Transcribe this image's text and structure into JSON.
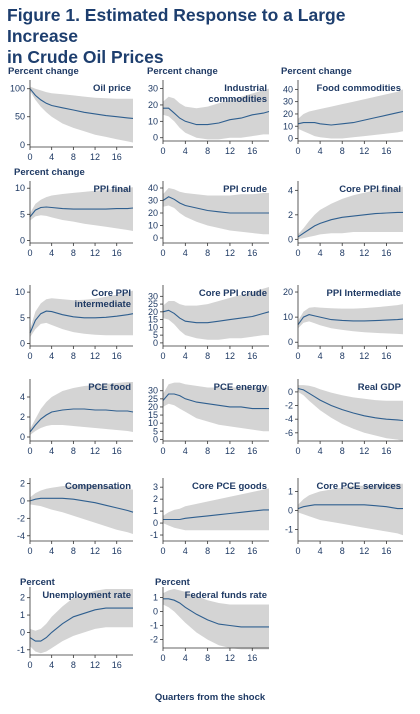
{
  "figure": {
    "title_line1": "Figure 1. Estimated Response to a Large Increase",
    "title_line2": "in Crude Oil Prices",
    "x_axis_label": "Quarters from the shock"
  },
  "colors": {
    "band": "#d4d4d4",
    "line": "#2f5f8f",
    "text": "#1f3a64",
    "title": "#1d3e6e"
  },
  "chart_data": [
    {
      "type": "line",
      "title": "Oil price",
      "ylabel": "Percent change",
      "x": [
        0,
        1,
        2,
        3,
        4,
        6,
        8,
        10,
        12,
        14,
        16,
        18,
        19
      ],
      "y": [
        100,
        88,
        80,
        74,
        70,
        66,
        62,
        58,
        55,
        52,
        50,
        48,
        47
      ],
      "lower": [
        96,
        80,
        68,
        58,
        50,
        38,
        30,
        24,
        18,
        14,
        10,
        6,
        4
      ],
      "upper": [
        104,
        100,
        97,
        94,
        92,
        90,
        88,
        86,
        84,
        83,
        82,
        82,
        82
      ],
      "ylim": [
        -4,
        112
      ],
      "yticks": [
        0,
        50,
        100
      ],
      "xlim": [
        0,
        19
      ],
      "xticks": [
        0,
        4,
        8,
        12,
        16
      ]
    },
    {
      "type": "line",
      "title": "Industrial commodities",
      "ylabel": "Percent change",
      "x": [
        0,
        1,
        2,
        3,
        4,
        6,
        8,
        10,
        12,
        14,
        16,
        18,
        19
      ],
      "y": [
        18,
        18,
        15,
        12,
        10,
        8,
        8,
        9,
        11,
        12,
        14,
        15,
        16
      ],
      "lower": [
        14,
        13,
        10,
        6,
        3,
        0,
        -1,
        -1,
        0,
        0,
        1,
        2,
        2
      ],
      "upper": [
        22,
        25,
        24,
        21,
        19,
        18,
        19,
        21,
        23,
        25,
        27,
        29,
        30
      ],
      "ylim": [
        -2,
        34
      ],
      "yticks": [
        0,
        10,
        20,
        30
      ],
      "xlim": [
        0,
        19
      ],
      "xticks": [
        0,
        4,
        8,
        12,
        16
      ]
    },
    {
      "type": "line",
      "title": "Food commodities",
      "ylabel": "Percent change",
      "x": [
        0,
        1,
        2,
        3,
        4,
        6,
        8,
        10,
        12,
        14,
        16,
        18,
        19
      ],
      "y": [
        12,
        13,
        13,
        13,
        12,
        11,
        12,
        13,
        15,
        17,
        19,
        21,
        22
      ],
      "lower": [
        8,
        6,
        4,
        2,
        1,
        0,
        0,
        1,
        2,
        3,
        4,
        5,
        6
      ],
      "upper": [
        16,
        20,
        22,
        23,
        24,
        26,
        28,
        30,
        32,
        34,
        36,
        38,
        40
      ],
      "ylim": [
        -2,
        46
      ],
      "yticks": [
        0,
        10,
        20,
        30,
        40
      ],
      "xlim": [
        0,
        19
      ],
      "xticks": [
        0,
        4,
        8,
        12,
        16
      ]
    },
    {
      "type": "line",
      "title": "PPI final",
      "ylabel": "Percent change",
      "x": [
        0,
        1,
        2,
        3,
        4,
        6,
        8,
        10,
        12,
        14,
        16,
        18,
        19
      ],
      "y": [
        4.5,
        5.8,
        6.3,
        6.4,
        6.3,
        6.1,
        6,
        6,
        6,
        6,
        6.1,
        6.1,
        6.2
      ],
      "lower": [
        3.8,
        4.6,
        4.8,
        4.7,
        4.4,
        3.9,
        3.6,
        3.2,
        2.9,
        2.6,
        2.3,
        2,
        1.8
      ],
      "upper": [
        5.2,
        7,
        7.8,
        8.3,
        8.6,
        8.9,
        9.1,
        9.3,
        9.5,
        9.7,
        9.9,
        10.1,
        10.2
      ],
      "ylim": [
        -0.5,
        11
      ],
      "yticks": [
        0,
        5,
        10
      ],
      "xlim": [
        0,
        19
      ],
      "xticks": [
        0,
        4,
        8,
        12,
        16
      ]
    },
    {
      "type": "line",
      "title": "PPI crude",
      "ylabel": "",
      "x": [
        0,
        1,
        2,
        3,
        4,
        6,
        8,
        10,
        12,
        14,
        16,
        18,
        19
      ],
      "y": [
        30,
        33,
        31,
        28,
        26,
        24,
        22,
        21,
        20,
        20,
        20,
        20,
        20
      ],
      "lower": [
        25,
        26,
        24,
        20,
        17,
        13,
        10,
        8,
        6,
        5,
        4,
        3,
        3
      ],
      "upper": [
        35,
        40,
        39,
        37,
        36,
        35,
        34,
        34,
        34,
        35,
        35,
        36,
        36
      ],
      "ylim": [
        -4,
        44
      ],
      "yticks": [
        0,
        10,
        20,
        30,
        40
      ],
      "xlim": [
        0,
        19
      ],
      "xticks": [
        0,
        4,
        8,
        12,
        16
      ]
    },
    {
      "type": "line",
      "title": "Core PPI final",
      "ylabel": "",
      "x": [
        0,
        1,
        2,
        3,
        4,
        6,
        8,
        10,
        12,
        14,
        16,
        18,
        19
      ],
      "y": [
        0.2,
        0.5,
        0.8,
        1.1,
        1.3,
        1.6,
        1.8,
        1.9,
        2,
        2.1,
        2.15,
        2.2,
        2.2
      ],
      "lower": [
        0,
        0.1,
        0.2,
        0.3,
        0.4,
        0.5,
        0.5,
        0.6,
        0.6,
        0.6,
        0.6,
        0.6,
        0.6
      ],
      "upper": [
        0.4,
        0.9,
        1.5,
        2,
        2.4,
        2.9,
        3.3,
        3.6,
        3.8,
        4,
        4.1,
        4.2,
        4.3
      ],
      "ylim": [
        -0.3,
        4.6
      ],
      "yticks": [
        0,
        2,
        4
      ],
      "xlim": [
        0,
        19
      ],
      "xticks": [
        0,
        4,
        8,
        12,
        16
      ]
    },
    {
      "type": "line",
      "title": "Core PPI intermediate",
      "ylabel": "",
      "x": [
        0,
        1,
        2,
        3,
        4,
        6,
        8,
        10,
        12,
        14,
        16,
        18,
        19
      ],
      "y": [
        2,
        4.5,
        5.8,
        6.3,
        6.2,
        5.6,
        5.2,
        5,
        5,
        5.1,
        5.3,
        5.6,
        5.8
      ],
      "lower": [
        1.2,
        2.8,
        3.8,
        4,
        3.6,
        2.8,
        2.2,
        1.9,
        1.7,
        1.6,
        1.6,
        1.6,
        1.6
      ],
      "upper": [
        2.8,
        6.2,
        7.8,
        8.6,
        8.8,
        8.6,
        8.4,
        8.5,
        8.7,
        9.1,
        9.5,
        10,
        10.3
      ],
      "ylim": [
        -0.5,
        11
      ],
      "yticks": [
        0,
        5,
        10
      ],
      "xlim": [
        0,
        19
      ],
      "xticks": [
        0,
        4,
        8,
        12,
        16
      ]
    },
    {
      "type": "line",
      "title": "Core PPI crude",
      "ylabel": "",
      "x": [
        0,
        1,
        2,
        3,
        4,
        6,
        8,
        10,
        12,
        14,
        16,
        18,
        19
      ],
      "y": [
        20,
        21,
        19,
        16,
        14,
        13,
        13,
        14,
        15,
        16,
        17,
        19,
        20
      ],
      "lower": [
        16,
        15,
        12,
        8,
        5,
        3,
        2,
        2,
        3,
        3,
        4,
        5,
        5
      ],
      "upper": [
        24,
        27,
        27,
        25,
        24,
        24,
        25,
        27,
        29,
        31,
        33,
        35,
        36
      ],
      "ylim": [
        -2,
        36
      ],
      "yticks": [
        0,
        5,
        10,
        15,
        20,
        25,
        30
      ],
      "xlim": [
        0,
        19
      ],
      "xticks": [
        0,
        4,
        8,
        12,
        16
      ]
    },
    {
      "type": "line",
      "title": "PPI Intermediate",
      "ylabel": "",
      "x": [
        0,
        1,
        2,
        3,
        4,
        6,
        8,
        10,
        12,
        14,
        16,
        18,
        19
      ],
      "y": [
        7,
        10,
        11,
        10.5,
        10,
        9,
        8.7,
        8.5,
        8.5,
        8.6,
        8.8,
        9,
        9.2
      ],
      "lower": [
        5.5,
        7.8,
        8.3,
        7.6,
        6.8,
        5.6,
        4.9,
        4.4,
        4,
        3.7,
        3.5,
        3.3,
        3.2
      ],
      "upper": [
        8.5,
        12.2,
        13.7,
        14,
        13.8,
        13.5,
        13.4,
        13.4,
        13.6,
        13.9,
        14.3,
        14.8,
        15.2
      ],
      "ylim": [
        -1.5,
        22
      ],
      "yticks": [
        0,
        10,
        20
      ],
      "xlim": [
        0,
        19
      ],
      "xticks": [
        0,
        4,
        8,
        12,
        16
      ]
    },
    {
      "type": "line",
      "title": "PCE food",
      "ylabel": "",
      "x": [
        0,
        1,
        2,
        3,
        4,
        6,
        8,
        10,
        12,
        14,
        16,
        18,
        19
      ],
      "y": [
        0.5,
        1.2,
        1.8,
        2.2,
        2.5,
        2.7,
        2.8,
        2.8,
        2.7,
        2.7,
        2.6,
        2.6,
        2.5
      ],
      "lower": [
        0.2,
        0.6,
        0.9,
        1.1,
        1.2,
        1.2,
        1.1,
        1,
        0.9,
        0.8,
        0.7,
        0.6,
        0.5
      ],
      "upper": [
        0.8,
        1.8,
        2.8,
        3.5,
        4,
        4.6,
        4.9,
        5.1,
        5.2,
        5.3,
        5.4,
        5.5,
        5.5
      ],
      "ylim": [
        -0.4,
        5.6
      ],
      "yticks": [
        0,
        2,
        4
      ],
      "xlim": [
        0,
        19
      ],
      "xticks": [
        0,
        4,
        8,
        12,
        16
      ]
    },
    {
      "type": "line",
      "title": "PCE energy",
      "ylabel": "",
      "x": [
        0,
        1,
        2,
        3,
        4,
        6,
        8,
        10,
        12,
        14,
        16,
        18,
        19
      ],
      "y": [
        24,
        28,
        28,
        27,
        25,
        23,
        22,
        21,
        20,
        20,
        19,
        19,
        19
      ],
      "lower": [
        20,
        22,
        21,
        19,
        17,
        13,
        11,
        9,
        8,
        7,
        6,
        5,
        5
      ],
      "upper": [
        28,
        34,
        35,
        35,
        34,
        33,
        32,
        32,
        32,
        32,
        32,
        32,
        33
      ],
      "ylim": [
        -1,
        36
      ],
      "yticks": [
        0,
        5,
        10,
        15,
        20,
        25,
        30
      ],
      "xlim": [
        0,
        19
      ],
      "xticks": [
        0,
        4,
        8,
        12,
        16
      ]
    },
    {
      "type": "line",
      "title": "Real GDP",
      "ylabel": "",
      "x": [
        0,
        1,
        2,
        3,
        4,
        6,
        8,
        10,
        12,
        14,
        16,
        18,
        19
      ],
      "y": [
        0.5,
        0.3,
        -0.2,
        -0.7,
        -1.2,
        -2,
        -2.6,
        -3.1,
        -3.5,
        -3.8,
        -4,
        -4.1,
        -4.2
      ],
      "lower": [
        0,
        -0.5,
        -1.3,
        -2,
        -2.7,
        -3.8,
        -4.7,
        -5.4,
        -6,
        -6.4,
        -6.8,
        -7,
        -7.2
      ],
      "upper": [
        1,
        1,
        0.9,
        0.7,
        0.4,
        -0.1,
        -0.5,
        -0.8,
        -1,
        -1.2,
        -1.3,
        -1.3,
        -1.3
      ],
      "ylim": [
        -7.2,
        1.6
      ],
      "yticks": [
        0,
        -2,
        -4,
        -6
      ],
      "xlim": [
        0,
        19
      ],
      "xticks": [
        0,
        4,
        8,
        12,
        16
      ]
    },
    {
      "type": "line",
      "title": "Compensation",
      "ylabel": "",
      "x": [
        0,
        1,
        2,
        3,
        4,
        6,
        8,
        10,
        12,
        14,
        16,
        18,
        19
      ],
      "y": [
        0,
        0.2,
        0.3,
        0.3,
        0.3,
        0.3,
        0.2,
        0,
        -0.2,
        -0.5,
        -0.8,
        -1.1,
        -1.3
      ],
      "lower": [
        -0.4,
        -0.5,
        -0.6,
        -0.8,
        -1,
        -1.3,
        -1.7,
        -2.1,
        -2.5,
        -2.9,
        -3.3,
        -3.6,
        -3.8
      ],
      "upper": [
        0.4,
        0.9,
        1.2,
        1.4,
        1.5,
        1.7,
        1.8,
        1.8,
        1.8,
        1.7,
        1.6,
        1.4,
        1.3
      ],
      "ylim": [
        -4.6,
        2.4
      ],
      "yticks": [
        2,
        0,
        -2,
        -4
      ],
      "xlim": [
        0,
        19
      ],
      "xticks": [
        0,
        4,
        8,
        12,
        16
      ]
    },
    {
      "type": "line",
      "title": "Core PCE goods",
      "ylabel": "",
      "x": [
        0,
        1,
        2,
        3,
        4,
        6,
        8,
        10,
        12,
        14,
        16,
        18,
        19
      ],
      "y": [
        0.3,
        0.3,
        0.3,
        0.3,
        0.4,
        0.5,
        0.6,
        0.7,
        0.8,
        0.9,
        1,
        1.1,
        1.1
      ],
      "lower": [
        0,
        -0.2,
        -0.4,
        -0.5,
        -0.6,
        -0.6,
        -0.6,
        -0.6,
        -0.6,
        -0.6,
        -0.6,
        -0.6,
        -0.6
      ],
      "upper": [
        0.6,
        0.9,
        1.1,
        1.2,
        1.4,
        1.6,
        1.8,
        2,
        2.2,
        2.4,
        2.6,
        2.8,
        2.9
      ],
      "ylim": [
        -1.5,
        3.6
      ],
      "yticks": [
        3,
        2,
        1,
        0,
        -1
      ],
      "xlim": [
        0,
        19
      ],
      "xticks": [
        0,
        4,
        8,
        12,
        16
      ]
    },
    {
      "type": "line",
      "title": "Core PCE services",
      "ylabel": "",
      "x": [
        0,
        1,
        2,
        3,
        4,
        6,
        8,
        10,
        12,
        14,
        16,
        18,
        19
      ],
      "y": [
        0.1,
        0.2,
        0.25,
        0.3,
        0.3,
        0.3,
        0.3,
        0.3,
        0.3,
        0.25,
        0.2,
        0.1,
        0.1
      ],
      "lower": [
        -0.1,
        -0.2,
        -0.3,
        -0.4,
        -0.5,
        -0.6,
        -0.7,
        -0.8,
        -0.9,
        -1,
        -1.1,
        -1.2,
        -1.3
      ],
      "upper": [
        0.3,
        0.6,
        0.8,
        0.9,
        1,
        1.1,
        1.2,
        1.3,
        1.3,
        1.3,
        1.4,
        1.4,
        1.4
      ],
      "ylim": [
        -1.6,
        1.6
      ],
      "yticks": [
        1,
        0,
        -1
      ],
      "xlim": [
        0,
        19
      ],
      "xticks": [
        0,
        4,
        8,
        12,
        16
      ]
    },
    {
      "type": "line",
      "title": "Unemployment rate",
      "ylabel": "Percent",
      "x": [
        0,
        1,
        2,
        3,
        4,
        6,
        8,
        10,
        12,
        14,
        16,
        18,
        19
      ],
      "y": [
        -0.3,
        -0.5,
        -0.5,
        -0.3,
        0,
        0.5,
        0.9,
        1.1,
        1.3,
        1.4,
        1.4,
        1.4,
        1.4
      ],
      "lower": [
        -0.8,
        -1.1,
        -1.2,
        -1.1,
        -0.9,
        -0.5,
        -0.2,
        0,
        0.2,
        0.3,
        0.3,
        0.3,
        0.3
      ],
      "upper": [
        0.2,
        0.1,
        0.2,
        0.5,
        0.9,
        1.5,
        2,
        2.2,
        2.4,
        2.5,
        2.5,
        2.5,
        2.5
      ],
      "ylim": [
        -1.3,
        2.5
      ],
      "yticks": [
        2,
        1,
        0,
        -1
      ],
      "xlim": [
        0,
        19
      ],
      "xticks": [
        0,
        4,
        8,
        12,
        16
      ]
    },
    {
      "type": "line",
      "title": "Federal funds rate",
      "ylabel": "Percent",
      "x": [
        0,
        1,
        2,
        3,
        4,
        6,
        8,
        10,
        12,
        14,
        16,
        18,
        19
      ],
      "y": [
        0.9,
        0.9,
        0.8,
        0.6,
        0.3,
        -0.2,
        -0.6,
        -0.9,
        -1,
        -1.1,
        -1.1,
        -1.1,
        -1.1
      ],
      "lower": [
        0.5,
        0.3,
        0,
        -0.4,
        -0.8,
        -1.5,
        -2,
        -2.4,
        -2.6,
        -2.7,
        -2.7,
        -2.7,
        -2.7
      ],
      "upper": [
        1.3,
        1.5,
        1.6,
        1.5,
        1.4,
        1.1,
        0.8,
        0.6,
        0.5,
        0.5,
        0.5,
        0.5,
        0.5
      ],
      "ylim": [
        -2.6,
        1.6
      ],
      "yticks": [
        1,
        0,
        -1,
        -2
      ],
      "xlim": [
        0,
        19
      ],
      "xticks": [
        0,
        4,
        8,
        12,
        16
      ]
    }
  ]
}
